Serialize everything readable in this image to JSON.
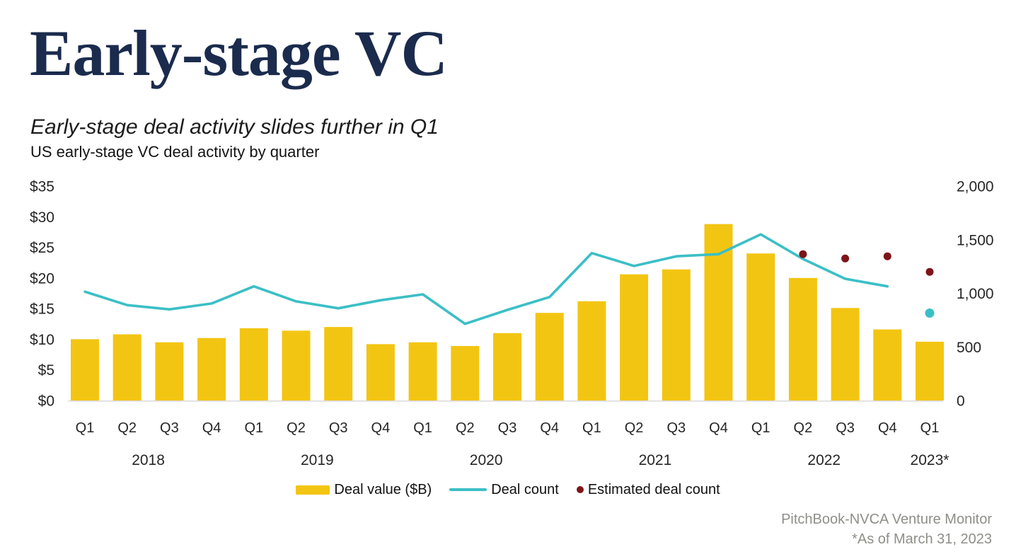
{
  "header": {
    "title": "Early-stage VC",
    "subtitle": "Early-stage deal activity slides further in Q1",
    "description": "US early-stage VC deal activity by quarter"
  },
  "legend": {
    "items": [
      {
        "label": "Deal value ($B)",
        "swatch": "bar",
        "color": "#F3C513"
      },
      {
        "label": "Deal count",
        "swatch": "line",
        "color": "#3BBFC6"
      },
      {
        "label": "Estimated deal count",
        "swatch": "dot",
        "color": "#7D1517"
      }
    ]
  },
  "footer": {
    "source": "PitchBook-NVCA Venture Monitor",
    "as_of": "*As of March 31, 2023"
  },
  "colors": {
    "title_navy": "#1B2B4D",
    "bar_yellow": "#F3C513",
    "line_teal": "#3BBFC6",
    "estimated_dot_red": "#7D1517",
    "axis_line_gray": "#DADADA",
    "footer_gray": "#8D8F88",
    "tick_text": "#262626"
  },
  "chart_data": {
    "type": "bar+line combo",
    "title": "US early-stage VC deal activity by quarter",
    "grid": false,
    "x_groups": [
      {
        "year": "2018",
        "quarters": [
          "Q1",
          "Q2",
          "Q3",
          "Q4"
        ]
      },
      {
        "year": "2019",
        "quarters": [
          "Q1",
          "Q2",
          "Q3",
          "Q4"
        ]
      },
      {
        "year": "2020",
        "quarters": [
          "Q1",
          "Q2",
          "Q3",
          "Q4"
        ]
      },
      {
        "year": "2021",
        "quarters": [
          "Q1",
          "Q2",
          "Q3",
          "Q4"
        ]
      },
      {
        "year": "2022",
        "quarters": [
          "Q1",
          "Q2",
          "Q3",
          "Q4"
        ]
      },
      {
        "year": "2023*",
        "quarters": [
          "Q1"
        ]
      }
    ],
    "left_axis": {
      "ticks": [
        "$0",
        "$5",
        "$10",
        "$15",
        "$20",
        "$25",
        "$30",
        "$35"
      ],
      "min": 0,
      "max": 35
    },
    "right_axis": {
      "ticks": [
        "0",
        "500",
        "1,000",
        "1,500",
        "2,000"
      ],
      "min": 0,
      "max": 2000
    },
    "series": [
      {
        "name": "Deal value ($B)",
        "type": "bar",
        "axis": "left",
        "color": "#F3C513",
        "values": [
          10.0,
          10.8,
          9.5,
          10.2,
          11.8,
          11.4,
          12.0,
          9.2,
          9.5,
          8.9,
          11.0,
          14.3,
          16.2,
          20.6,
          21.4,
          28.8,
          24.0,
          20.0,
          15.1,
          11.6,
          9.6
        ]
      },
      {
        "name": "Deal count",
        "type": "line",
        "axis": "right",
        "color": "#3BBFC6",
        "values": [
          1015,
          890,
          850,
          905,
          1065,
          925,
          860,
          935,
          990,
          715,
          845,
          965,
          1375,
          1255,
          1345,
          1365,
          1550,
          1320,
          1135,
          1065,
          null
        ]
      },
      {
        "name": "Deal count (isolated point)",
        "type": "point",
        "axis": "right",
        "color": "#3BBFC6",
        "marker_radius": 6.5,
        "values": [
          null,
          null,
          null,
          null,
          null,
          null,
          null,
          null,
          null,
          null,
          null,
          null,
          null,
          null,
          null,
          null,
          null,
          null,
          null,
          null,
          815
        ]
      },
      {
        "name": "Estimated deal count",
        "type": "point",
        "axis": "right",
        "color": "#7D1517",
        "marker_radius": 5.5,
        "values": [
          null,
          null,
          null,
          null,
          null,
          null,
          null,
          null,
          null,
          null,
          null,
          null,
          null,
          null,
          null,
          null,
          null,
          1365,
          1325,
          1345,
          1200
        ]
      }
    ]
  }
}
